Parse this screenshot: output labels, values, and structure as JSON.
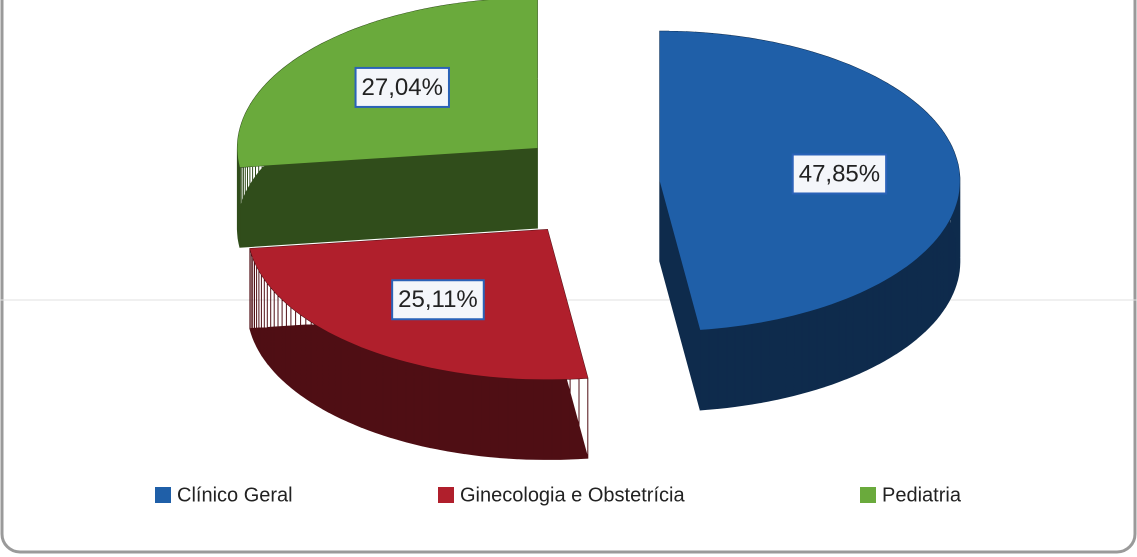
{
  "chart_data": {
    "type": "pie",
    "categories": [
      "Clínico Geral",
      "Ginecologia e Obstetrícia",
      "Pediatria"
    ],
    "values": [
      47.85,
      25.11,
      27.04
    ],
    "value_labels": [
      "47,85%",
      "25,11%",
      "27,04%"
    ],
    "colors": [
      "#1f5fa8",
      "#b01f2c",
      "#6aaa3c"
    ],
    "legend": "bottom"
  }
}
